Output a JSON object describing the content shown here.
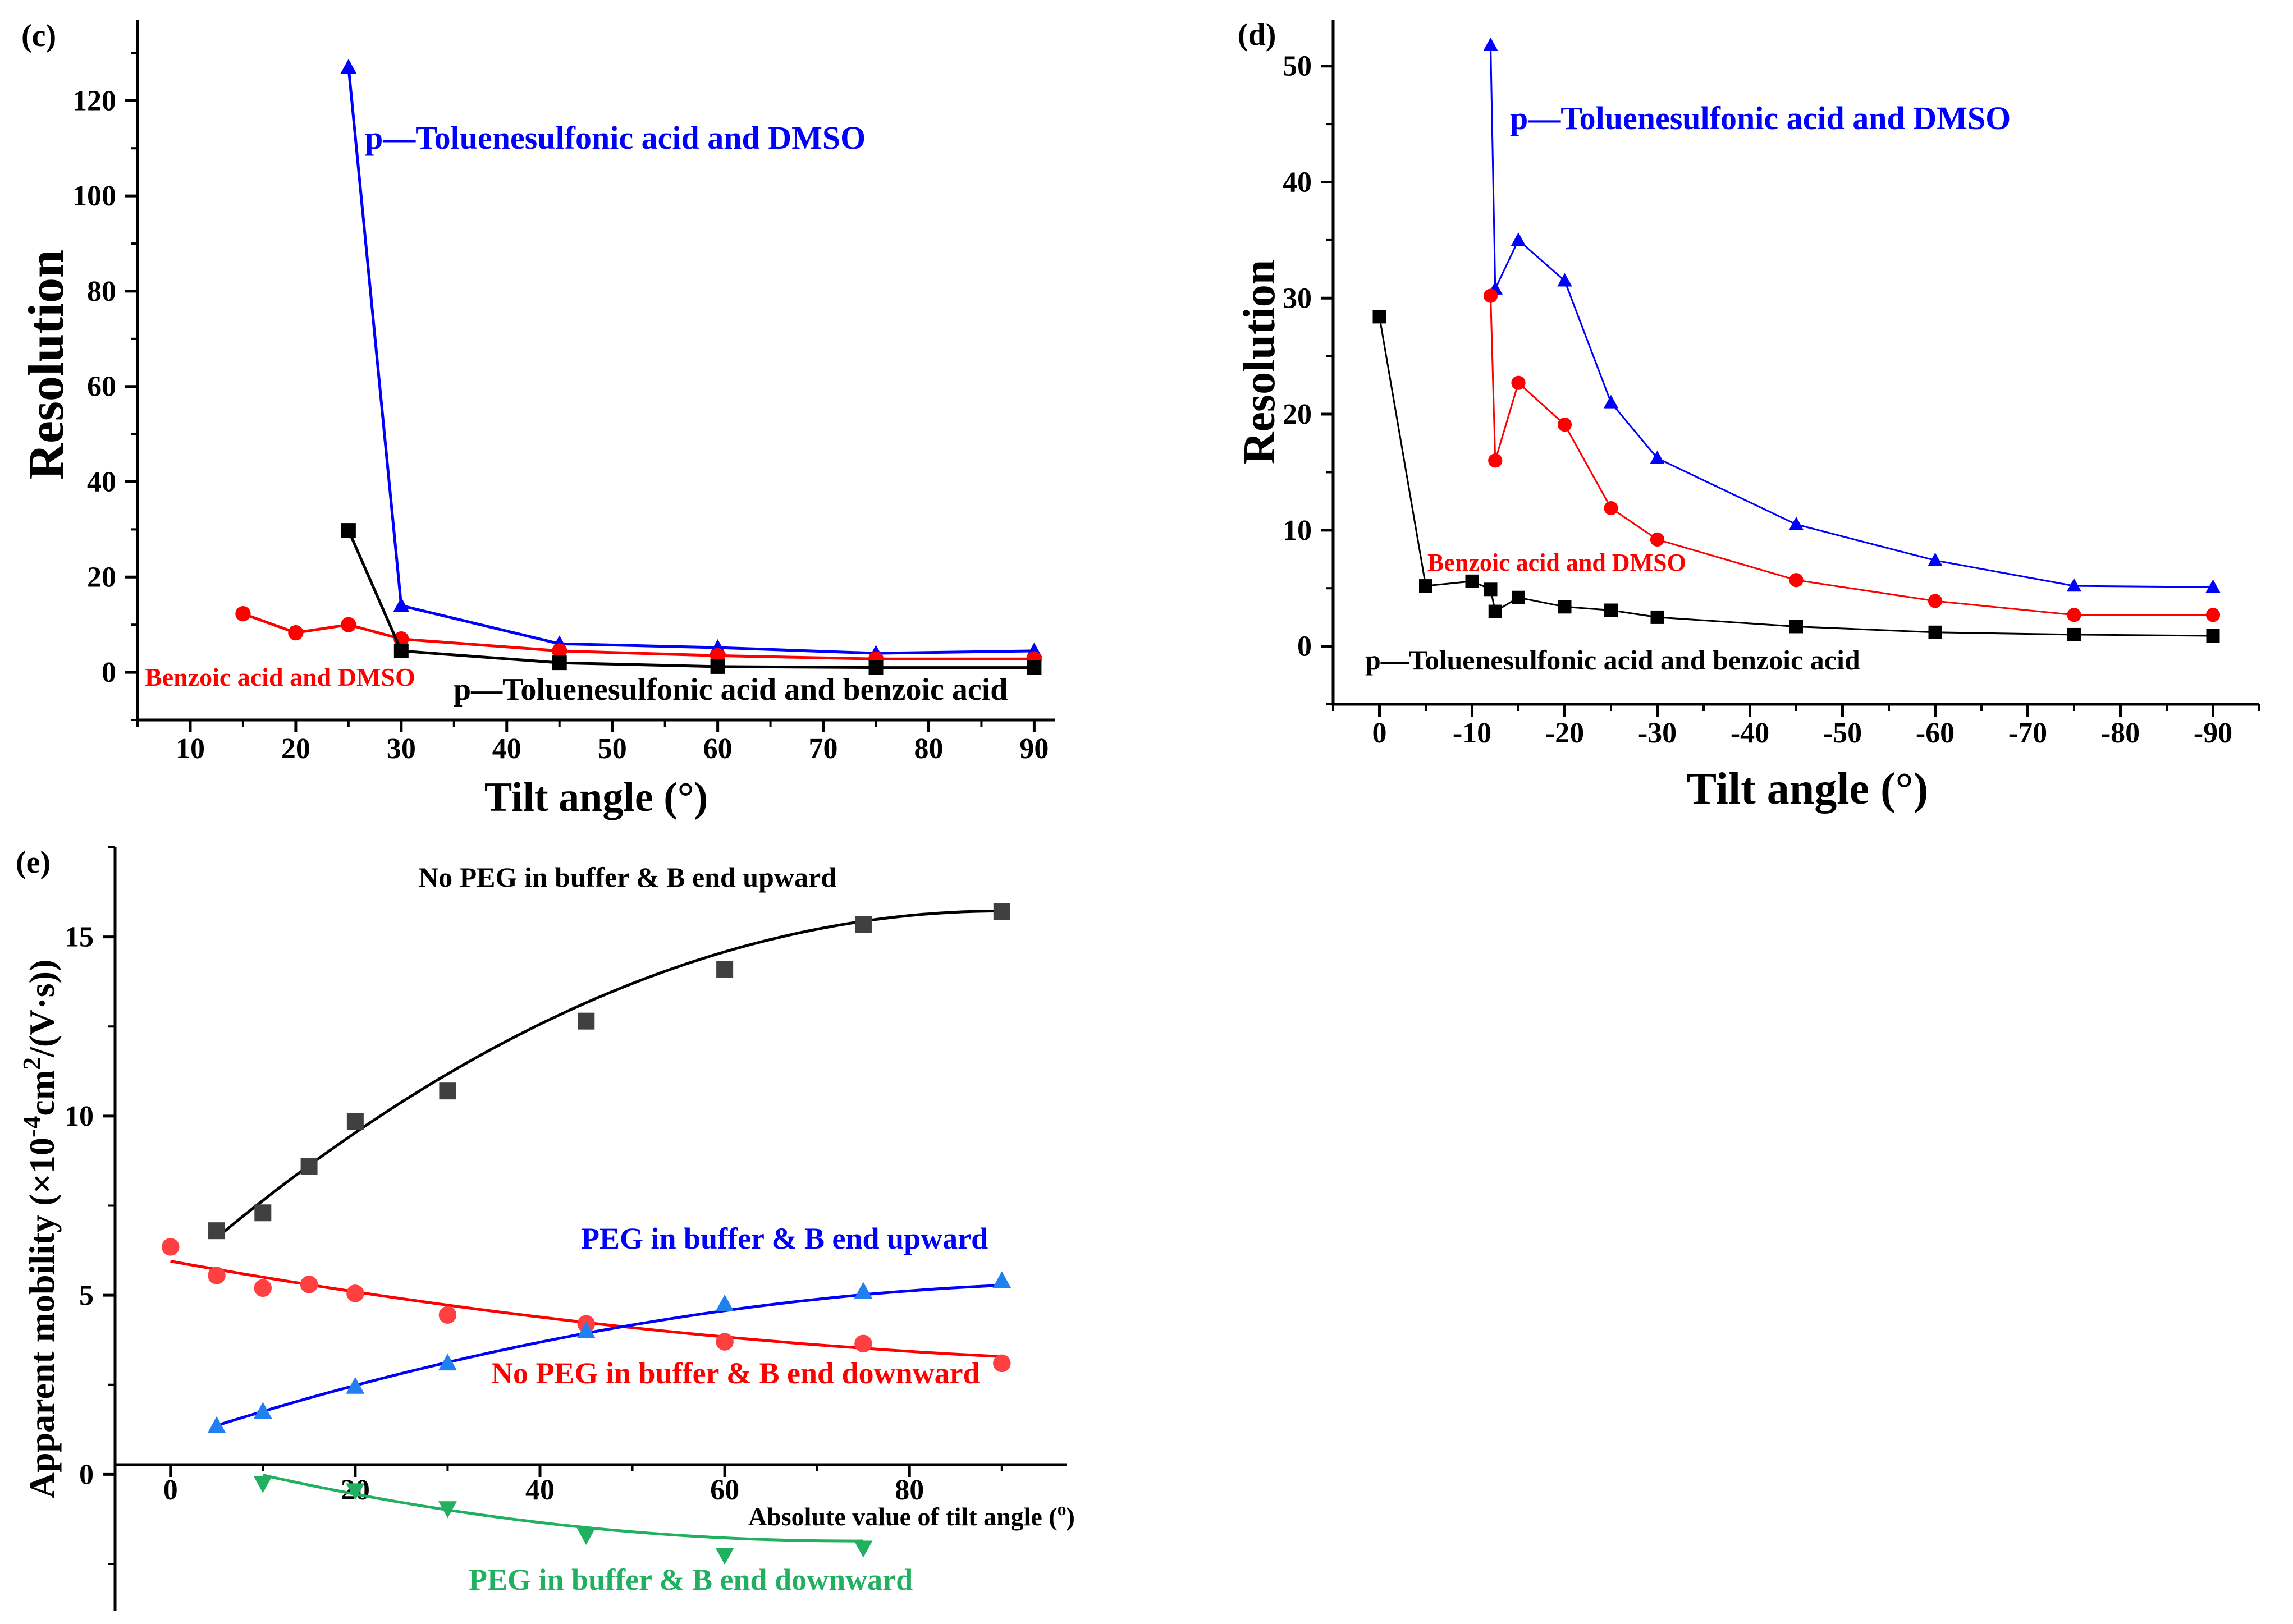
{
  "chart_data": [
    {
      "panel_label": "(c)",
      "type": "line",
      "xlabel": "Tilt angle (°)",
      "ylabel": "Resolution",
      "xlim": [
        5,
        92
      ],
      "ylim": [
        -10,
        137
      ],
      "xticks": [
        10,
        20,
        30,
        40,
        50,
        60,
        70,
        80,
        90
      ],
      "xtick_labels": [
        "10",
        "20",
        "30",
        "40",
        "50",
        "60",
        "70",
        "80",
        "90"
      ],
      "yticks": [
        0,
        20,
        40,
        60,
        80,
        100,
        120
      ],
      "ytick_labels": [
        "0",
        "20",
        "40",
        "60",
        "80",
        "100",
        "120"
      ],
      "series": [
        {
          "name": "p—Toluenesulfonic acid and DMSO",
          "color": "#0000ff",
          "marker": "triangle-up",
          "x": [
            25,
            30,
            45,
            60,
            75,
            90
          ],
          "y": [
            127,
            14,
            6,
            5.2,
            4,
            4.5
          ]
        },
        {
          "name": "Benzoic acid and DMSO",
          "color": "#ff0000",
          "marker": "circle",
          "x": [
            15,
            20,
            25,
            30,
            45,
            60,
            75,
            90
          ],
          "y": [
            12.3,
            8.3,
            10,
            7,
            4.5,
            3.5,
            2.8,
            2.8
          ]
        },
        {
          "name": "p—Toluenesulfonic acid and benzoic acid",
          "color": "#000000",
          "marker": "square",
          "x": [
            25,
            30,
            45,
            60,
            75,
            90
          ],
          "y": [
            29.8,
            4.5,
            2,
            1.2,
            1,
            1
          ]
        }
      ],
      "annotations": [
        {
          "text": "p—Toluenesulfonic acid and DMSO",
          "color": "#0000ff"
        },
        {
          "text": "Benzoic acid and DMSO",
          "color": "#ff0000"
        },
        {
          "text": "p—Toluenesulfonic acid and benzoic acid",
          "color": "#000000"
        }
      ]
    },
    {
      "panel_label": "(d)",
      "type": "line",
      "xlabel": "Tilt angle (°)",
      "ylabel": "Resolution",
      "xlim": [
        5,
        -95
      ],
      "ylim": [
        -5,
        54
      ],
      "xticks": [
        0,
        -10,
        -20,
        -30,
        -40,
        -50,
        -60,
        -70,
        -80,
        -90
      ],
      "xtick_labels": [
        "0",
        "-10",
        "-20",
        "-30",
        "-40",
        "-50",
        "-60",
        "-70",
        "-80",
        "-90"
      ],
      "yticks": [
        0,
        10,
        20,
        30,
        40,
        50
      ],
      "ytick_labels": [
        "0",
        "10",
        "20",
        "30",
        "40",
        "50"
      ],
      "series": [
        {
          "name": "p—Toluenesulfonic acid and DMSO",
          "color": "#0000ff",
          "marker": "triangle-up",
          "x": [
            -12,
            -12.5,
            -15,
            -20,
            -25,
            -30,
            -45,
            -60,
            -75,
            -90
          ],
          "y": [
            51.8,
            30.8,
            35,
            31.5,
            21,
            16.2,
            10.5,
            7.4,
            5.2,
            5.1
          ]
        },
        {
          "name": "Benzoic acid and DMSO",
          "color": "#ff0000",
          "marker": "circle",
          "x": [
            -12,
            -12.5,
            -15,
            -20,
            -25,
            -30,
            -45,
            -60,
            -75,
            -90
          ],
          "y": [
            30.2,
            16,
            22.7,
            19.1,
            11.9,
            9.2,
            5.7,
            3.9,
            2.7,
            2.7
          ]
        },
        {
          "name": "p—Toluenesulfonic acid and benzoic acid",
          "color": "#000000",
          "marker": "square",
          "x": [
            0,
            -5,
            -10,
            -12,
            -12.5,
            -15,
            -20,
            -25,
            -30,
            -45,
            -60,
            -75,
            -90
          ],
          "y": [
            28.4,
            5.2,
            5.6,
            4.9,
            3,
            4.2,
            3.4,
            3.1,
            2.5,
            1.7,
            1.2,
            1,
            0.9
          ]
        }
      ],
      "annotations": [
        {
          "text": "p—Toluenesulfonic acid and DMSO",
          "color": "#0000ff"
        },
        {
          "text": "Benzoic acid and DMSO",
          "color": "#ff0000"
        },
        {
          "text": "p—Toluenesulfonic acid and benzoic acid",
          "color": "#000000"
        }
      ]
    },
    {
      "panel_label": "(e)",
      "type": "scatter",
      "xlabel": "Absolute value of tilt angle (",
      "xlabel_superscript": "o",
      "xlabel_close": ")",
      "ylabel_prefix": "Apparent mobility (×10",
      "ylabel_exponent": "-4",
      "ylabel_middle": "cm",
      "ylabel_exponent2": "2",
      "ylabel_suffix": "/(V·s))",
      "xlim": [
        -6,
        97
      ],
      "ylim": [
        -3.8,
        17.5
      ],
      "xticks": [
        0,
        20,
        40,
        60,
        80
      ],
      "xtick_labels": [
        "0",
        "20",
        "40",
        "60",
        "80"
      ],
      "yticks": [
        0,
        5,
        10,
        15
      ],
      "ytick_labels": [
        "0",
        "5",
        "10",
        "15"
      ],
      "series": [
        {
          "name": "No PEG in buffer & B end upward",
          "color": "#404040",
          "fit_color": "#000000",
          "marker": "square",
          "x": [
            5,
            10,
            15,
            20,
            30,
            45,
            60,
            75,
            90
          ],
          "y": [
            6.8,
            7.3,
            8.6,
            9.85,
            10.7,
            12.65,
            14.1,
            15.35,
            15.7
          ],
          "fit": {
            "a": 5.5,
            "b": 0.227,
            "c": -0.00126
          }
        },
        {
          "name": "No PEG in buffer & B end downward",
          "color": "#ff4040",
          "fit_color": "#ff0000",
          "marker": "circle",
          "x": [
            0,
            5,
            10,
            15,
            20,
            30,
            45,
            60,
            75,
            90
          ],
          "y": [
            6.35,
            5.55,
            5.2,
            5.3,
            5.05,
            4.45,
            4.2,
            3.7,
            3.65,
            3.1
          ],
          "fit": {
            "a": 5.95,
            "b": -0.0465,
            "c": 0.000188
          }
        },
        {
          "name": "PEG in buffer & B end upward",
          "color": "#2080f0",
          "fit_color": "#0000ff",
          "marker": "triangle-up",
          "x": [
            5,
            10,
            20,
            30,
            45,
            60,
            75,
            90
          ],
          "y": [
            1.35,
            1.75,
            2.45,
            3.1,
            4.0,
            4.75,
            5.1,
            5.4
          ],
          "fit": {
            "a": 0.95,
            "b": 0.0848,
            "c": -0.000408
          }
        },
        {
          "name": "PEG in buffer & B end downward",
          "color": "#20b060",
          "fit_color": "#20b060",
          "marker": "triangle-down",
          "x": [
            10,
            20,
            30,
            45,
            60,
            75
          ],
          "y": [
            -0.25,
            -0.45,
            -0.95,
            -1.7,
            -2.25,
            -2.05
          ],
          "fit": {
            "a": 0.6,
            "b": -0.0666,
            "c": 0.000451
          },
          "fit_range": [
            10,
            75
          ]
        }
      ],
      "annotations": [
        {
          "text": "No PEG in buffer & B end upward",
          "color": "#000000"
        },
        {
          "text": "PEG in buffer & B end upward",
          "color": "#0000ff"
        },
        {
          "text": "No PEG in buffer & B end downward",
          "color": "#ff0000"
        },
        {
          "text": "PEG in buffer & B end downward",
          "color": "#20b060"
        }
      ]
    }
  ]
}
